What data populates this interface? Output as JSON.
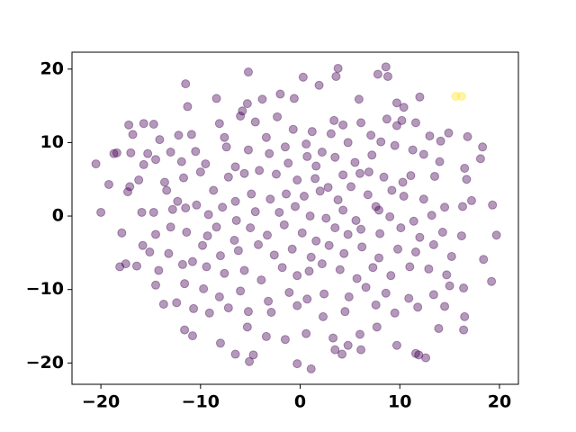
{
  "chart_data": {
    "type": "scatter",
    "xlim": [
      -22.9,
      21.9
    ],
    "ylim": [
      -22.9,
      22.3
    ],
    "xticks": [
      {
        "value": -20,
        "label": "−20"
      },
      {
        "value": -10,
        "label": "−10"
      },
      0,
      10,
      20
    ],
    "yticks": [
      {
        "value": -20,
        "label": "−20"
      },
      {
        "value": -10,
        "label": "−10"
      },
      0,
      10,
      20
    ],
    "grid": false,
    "series": [
      {
        "color": "#440154",
        "x": [
          -5.2,
          0.3,
          3.8,
          3.6,
          7.8,
          8.6,
          8.8,
          -11.5,
          1.9,
          -2.0,
          -0.6,
          5.9,
          -11.3,
          -8.4,
          -5.3,
          -6.0,
          -3.8,
          -2.3,
          -5.8,
          9.7,
          10.4,
          12.0,
          10.2,
          8.7,
          6.1,
          -14.7,
          -15.7,
          -17.2,
          -16.8,
          -14.1,
          -12.2,
          -10.9,
          -8.1,
          -7.6,
          -4.5,
          -3.4,
          -1.5,
          0.6,
          -0.7,
          1.2,
          3.1,
          3.4,
          4.3,
          4.8,
          2.2,
          7.1,
          8.1,
          9.7,
          11.6,
          13.0,
          14.1,
          14.9,
          16.8,
          18.3,
          -18.7,
          -18.4,
          -17.0,
          -15.3,
          -13.0,
          -11.9,
          -10.5,
          -9.5,
          -7.4,
          -6.5,
          -5.2,
          -3.1,
          -1.2,
          0.7,
          1.6,
          3.5,
          5.5,
          7.2,
          6.9,
          9.5,
          11.3,
          12.4,
          14.0,
          16.5,
          18.1,
          -20.5,
          -17.1,
          -16.2,
          -15.7,
          -14.5,
          -13.6,
          -11.7,
          -10.0,
          -7.2,
          -5.6,
          -4.1,
          -2.4,
          -0.3,
          1.5,
          2.8,
          4.3,
          6.0,
          8.4,
          10.3,
          11.1,
          13.5,
          16.7,
          17.2,
          -19.2,
          -17.3,
          -13.4,
          -12.3,
          -10.4,
          -8.7,
          -6.5,
          -4.9,
          -3.0,
          -1.4,
          0.4,
          2.0,
          3.8,
          5.1,
          6.8,
          7.6,
          9.2,
          10.4,
          12.4,
          14.5,
          -20.0,
          -15.9,
          -14.7,
          -12.8,
          -11.5,
          -9.2,
          -7.8,
          -6.4,
          -4.5,
          -2.1,
          -0.5,
          1.0,
          2.6,
          4.3,
          5.6,
          7.9,
          9.0,
          11.4,
          13.2,
          16.3,
          19.3,
          -17.9,
          -15.8,
          -14.5,
          -13.0,
          -11.4,
          -9.3,
          -8.4,
          -6.6,
          -5.0,
          -3.3,
          -1.6,
          0.2,
          1.6,
          3.5,
          4.8,
          6.1,
          8.0,
          10.1,
          12.0,
          14.3,
          16.2,
          19.7,
          -18.1,
          -16.4,
          -15.1,
          -13.2,
          -11.8,
          -9.8,
          -8.0,
          -6.2,
          -4.2,
          -2.6,
          -0.8,
          1.1,
          2.9,
          4.4,
          6.2,
          7.9,
          9.8,
          11.6,
          13.4,
          15.2,
          18.4,
          -17.5,
          -14.2,
          -10.8,
          -9.4,
          -7.6,
          -5.6,
          -3.9,
          -1.8,
          -0.3,
          0.9,
          2.2,
          4.0,
          5.7,
          7.3,
          9.1,
          11.0,
          12.9,
          14.7,
          16.4,
          19.2,
          -14.5,
          -11.6,
          -9.7,
          -8.1,
          -6.0,
          -3.2,
          -1.1,
          0.7,
          2.4,
          4.9,
          6.6,
          8.6,
          10.9,
          13.4,
          15.0,
          -13.7,
          -12.4,
          -10.7,
          -9.1,
          -7.2,
          -5.2,
          -2.9,
          -0.3,
          2.3,
          4.5,
          7.6,
          9.5,
          11.8,
          14.5,
          16.5,
          -11.6,
          -10.8,
          -8.0,
          -5.3,
          -3.4,
          -1.5,
          0.6,
          3.3,
          4.8,
          6.0,
          7.7,
          9.7,
          11.6,
          13.9,
          16.4,
          -6.5,
          -5.1,
          -4.7,
          -0.3,
          1.1,
          3.5,
          4.2,
          6.1,
          11.9,
          12.6
        ],
        "y": [
          19.6,
          18.9,
          20.1,
          19.0,
          19.3,
          20.3,
          19.0,
          18.0,
          17.8,
          16.6,
          16.0,
          15.9,
          14.9,
          16.0,
          15.3,
          13.6,
          15.9,
          13.5,
          14.3,
          15.4,
          14.8,
          16.2,
          13.0,
          13.2,
          12.7,
          12.5,
          12.6,
          12.4,
          11.1,
          10.4,
          11.0,
          11.1,
          12.6,
          10.7,
          12.8,
          10.7,
          9.4,
          9.8,
          11.8,
          11.5,
          11.2,
          13.0,
          12.4,
          10.0,
          8.7,
          11.0,
          10.1,
          12.3,
          12.7,
          10.9,
          10.2,
          11.3,
          10.8,
          9.4,
          8.5,
          8.6,
          8.6,
          8.5,
          8.7,
          7.4,
          8.8,
          7.1,
          9.4,
          6.7,
          9.0,
          8.5,
          7.2,
          8.1,
          6.8,
          8.0,
          7.3,
          8.3,
          6.0,
          9.6,
          9.0,
          8.4,
          7.4,
          6.5,
          7.8,
          7.1,
          4.0,
          4.9,
          7.0,
          7.7,
          4.6,
          5.2,
          6.0,
          5.3,
          5.8,
          6.2,
          5.7,
          4.9,
          5.1,
          3.9,
          5.6,
          5.8,
          5.3,
          4.6,
          5.5,
          5.4,
          5.0,
          2.1,
          4.3,
          3.3,
          3.5,
          2.0,
          1.5,
          3.5,
          2.0,
          3.0,
          2.3,
          3.0,
          2.7,
          3.4,
          2.2,
          4.0,
          2.9,
          1.3,
          3.5,
          2.7,
          2.3,
          1.2,
          0.5,
          0.5,
          0.5,
          0.9,
          1.1,
          0.2,
          1.2,
          -0.6,
          0.6,
          0.5,
          1.3,
          0.0,
          -0.3,
          0.8,
          -0.6,
          0.8,
          -0.1,
          -0.7,
          0.1,
          1.3,
          1.5,
          -2.3,
          -4.0,
          -2.5,
          -1.5,
          -2.2,
          -2.7,
          -1.5,
          -3.3,
          -1.6,
          -2.6,
          -1.2,
          -2.3,
          -3.4,
          -1.6,
          -2.5,
          -1.8,
          -2.4,
          -1.6,
          -2.9,
          -2.2,
          -2.7,
          -2.6,
          -6.9,
          -6.8,
          -4.9,
          -5.1,
          -6.6,
          -4.0,
          -5.4,
          -4.7,
          -3.9,
          -5.3,
          -4.5,
          -5.6,
          -4.0,
          -5.1,
          -4.2,
          -5.7,
          -4.5,
          -4.9,
          -3.9,
          -5.5,
          -5.9,
          -6.5,
          -7.4,
          -6.2,
          -6.9,
          -7.8,
          -7.4,
          -8.7,
          -7.0,
          -8.1,
          -7.5,
          -6.5,
          -7.3,
          -8.5,
          -7.0,
          -8.1,
          -6.9,
          -7.2,
          -8.0,
          -9.8,
          -8.9,
          -9.4,
          -9.2,
          -9.9,
          -11.0,
          -10.2,
          -11.6,
          -10.4,
          -11.3,
          -10.6,
          -11.0,
          -9.7,
          -10.5,
          -11.2,
          -10.7,
          -9.5,
          -12.0,
          -11.8,
          -12.6,
          -13.2,
          -12.5,
          -13.0,
          -13.1,
          -12.2,
          -13.7,
          -13.0,
          -12.1,
          -13.2,
          -12.4,
          -12.3,
          -13.7,
          -15.5,
          -16.3,
          -17.3,
          -15.1,
          -16.4,
          -16.8,
          -16.0,
          -16.6,
          -17.6,
          -16.1,
          -15.1,
          -17.6,
          -18.7,
          -15.3,
          -15.5,
          -18.8,
          -19.8,
          -18.9,
          -20.1,
          -20.8,
          -18.2,
          -18.8,
          -18.2,
          -18.9,
          -19.3
        ]
      },
      {
        "color": "#fde725",
        "x": [
          15.6,
          16.2
        ],
        "y": [
          16.3,
          16.3
        ]
      }
    ]
  }
}
